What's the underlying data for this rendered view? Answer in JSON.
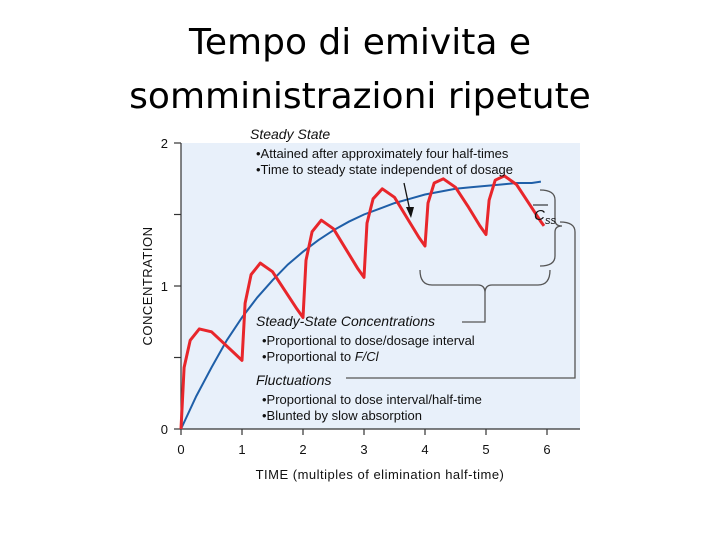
{
  "slide": {
    "title_line1": "Tempo di emivita e",
    "title_line2": "somministrazioni ripetute"
  },
  "chart_data": {
    "type": "line",
    "xlabel": "TIME (multiples of elimination half-time)",
    "ylabel": "CONCENTRATION",
    "xlim": [
      0,
      6
    ],
    "ylim": [
      0,
      2
    ],
    "x_ticks": [
      0,
      1,
      2,
      3,
      4,
      5,
      6
    ],
    "y_ticks": [
      0,
      0.5,
      1,
      1.5,
      2
    ],
    "y_tick_labels": [
      "0",
      "",
      "1",
      "",
      "2"
    ],
    "grid": false,
    "series": [
      {
        "style": "red-sawtooth",
        "color": "#e8262b",
        "points": [
          [
            0,
            0
          ],
          [
            0.05,
            0.43
          ],
          [
            0.15,
            0.62
          ],
          [
            0.3,
            0.7
          ],
          [
            0.5,
            0.68
          ],
          [
            0.7,
            0.6
          ],
          [
            0.9,
            0.52
          ],
          [
            1.0,
            0.48
          ],
          [
            1.05,
            0.88
          ],
          [
            1.15,
            1.08
          ],
          [
            1.3,
            1.16
          ],
          [
            1.5,
            1.1
          ],
          [
            1.7,
            0.97
          ],
          [
            1.9,
            0.84
          ],
          [
            2.0,
            0.78
          ],
          [
            2.05,
            1.18
          ],
          [
            2.15,
            1.38
          ],
          [
            2.3,
            1.46
          ],
          [
            2.5,
            1.4
          ],
          [
            2.7,
            1.26
          ],
          [
            2.9,
            1.12
          ],
          [
            3.0,
            1.06
          ],
          [
            3.05,
            1.44
          ],
          [
            3.15,
            1.61
          ],
          [
            3.3,
            1.68
          ],
          [
            3.5,
            1.62
          ],
          [
            3.7,
            1.48
          ],
          [
            3.9,
            1.34
          ],
          [
            4.0,
            1.28
          ],
          [
            4.05,
            1.58
          ],
          [
            4.15,
            1.72
          ],
          [
            4.3,
            1.75
          ],
          [
            4.5,
            1.69
          ],
          [
            4.7,
            1.56
          ],
          [
            4.9,
            1.42
          ],
          [
            5.0,
            1.36
          ],
          [
            5.05,
            1.6
          ],
          [
            5.15,
            1.74
          ],
          [
            5.3,
            1.77
          ],
          [
            5.5,
            1.71
          ],
          [
            5.7,
            1.58
          ],
          [
            5.9,
            1.45
          ],
          [
            5.95,
            1.42
          ]
        ]
      },
      {
        "style": "blue-smooth",
        "color": "#1f5fa8",
        "points": [
          [
            0,
            0
          ],
          [
            0.25,
            0.23
          ],
          [
            0.5,
            0.43
          ],
          [
            0.75,
            0.62
          ],
          [
            1,
            0.78
          ],
          [
            1.25,
            0.92
          ],
          [
            1.5,
            1.04
          ],
          [
            1.75,
            1.15
          ],
          [
            2,
            1.24
          ],
          [
            2.25,
            1.32
          ],
          [
            2.5,
            1.39
          ],
          [
            2.75,
            1.45
          ],
          [
            3,
            1.5
          ],
          [
            3.25,
            1.54
          ],
          [
            3.5,
            1.58
          ],
          [
            3.75,
            1.61
          ],
          [
            4,
            1.64
          ],
          [
            4.25,
            1.66
          ],
          [
            4.5,
            1.68
          ],
          [
            4.75,
            1.69
          ],
          [
            5,
            1.7
          ],
          [
            5.25,
            1.71
          ],
          [
            5.5,
            1.72
          ],
          [
            5.75,
            1.72
          ],
          [
            5.9,
            1.73
          ]
        ]
      }
    ],
    "css_label": "C",
    "css_subscript": "ss",
    "annotations": {
      "steady_state": {
        "heading": "Steady State",
        "bullets": [
          "•Attained after approximately four half-times",
          "•Time to steady state independent of dosage"
        ]
      },
      "ss_concentrations": {
        "heading": "Steady-State Concentrations",
        "bullet1": "•Proportional to dose/dosage interval",
        "bullet2_prefix": "•Proportional to ",
        "bullet2_italic": "F/Cl"
      },
      "fluctuations": {
        "heading": "Fluctuations",
        "bullets": [
          "•Proportional to dose interval/half-time",
          "•Blunted by slow absorption"
        ]
      }
    },
    "colors": {
      "plot_background": "#e8f0fa",
      "brackets": "#555555",
      "arrow": "#111111"
    }
  }
}
